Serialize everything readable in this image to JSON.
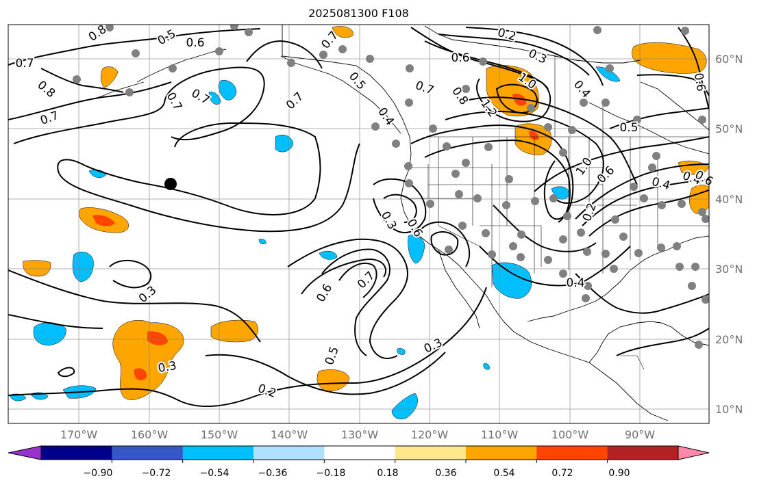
{
  "title": "2025081300 F108",
  "lat_labels": [
    "60°N",
    "50°N",
    "40°N",
    "30°N",
    "20°N",
    "10°N"
  ],
  "lon_labels": [
    "170°W",
    "160°W",
    "150°W",
    "140°W",
    "130°W",
    "120°W",
    "110°W",
    "100°W",
    "90°W"
  ],
  "colorbar": {
    "ticks": [
      "−0.90",
      "−0.72",
      "−0.54",
      "−0.36",
      "−0.18",
      "0.18",
      "0.36",
      "0.54",
      "0.72",
      "0.90"
    ],
    "colors": [
      "#9932cc",
      "#00008b",
      "#3557c8",
      "#00bfff",
      "#b0e0ff",
      "#ffffff",
      "#ffe88a",
      "#ffa500",
      "#ff4500",
      "#b22222",
      "#ff88aa"
    ]
  },
  "contour_labels": [
    {
      "text": "0.8"
    },
    {
      "text": "0.5"
    },
    {
      "text": "0.6"
    },
    {
      "text": "0.7"
    },
    {
      "text": "0.8"
    },
    {
      "text": "0.7"
    },
    {
      "text": "0.7"
    },
    {
      "text": "0.7"
    },
    {
      "text": "0.7"
    },
    {
      "text": "0.7"
    },
    {
      "text": "0.5"
    },
    {
      "text": "0.4"
    },
    {
      "text": "0.2"
    },
    {
      "text": "0.3"
    },
    {
      "text": "0.6"
    },
    {
      "text": "0.7"
    },
    {
      "text": "0.8"
    },
    {
      "text": "1.0"
    },
    {
      "text": "1.2"
    },
    {
      "text": "0.4"
    },
    {
      "text": "0.5"
    },
    {
      "text": "1.0"
    },
    {
      "text": "0.6"
    },
    {
      "text": "0.4"
    },
    {
      "text": "0.2"
    },
    {
      "text": "0.3"
    },
    {
      "text": "0.6"
    },
    {
      "text": "0.7"
    },
    {
      "text": "0.6"
    },
    {
      "text": "0.5"
    },
    {
      "text": "0.3"
    },
    {
      "text": "0.3"
    },
    {
      "text": "0.3"
    },
    {
      "text": "0.2"
    },
    {
      "text": "0.4"
    },
    {
      "text": "0.6"
    },
    {
      "text": "0.4"
    },
    {
      "text": "0.6"
    }
  ]
}
